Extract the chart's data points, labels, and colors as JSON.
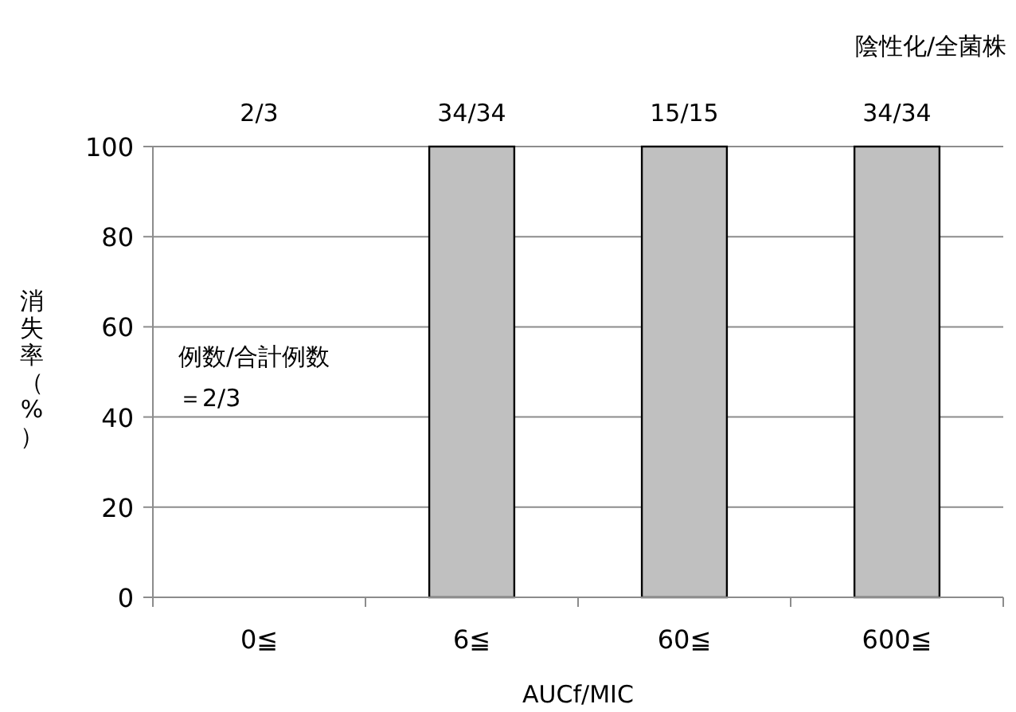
{
  "chart_data": {
    "type": "bar",
    "categories": [
      "0≦",
      "6≦",
      "60≦",
      "600≦"
    ],
    "values": [
      null,
      100,
      100,
      100
    ],
    "color": "#c0c0c0",
    "xlabel": "AUCf/MIC",
    "ylabel": "消失率（%）",
    "ylim": [
      0,
      100
    ],
    "yticks": [
      0,
      20,
      40,
      60,
      80,
      100
    ],
    "grid": "y",
    "annotations": [
      "陰性化/全菌株",
      "2/3",
      "34/34",
      "15/15",
      "34/34",
      "例数/合計例数",
      "＝2/3"
    ]
  }
}
